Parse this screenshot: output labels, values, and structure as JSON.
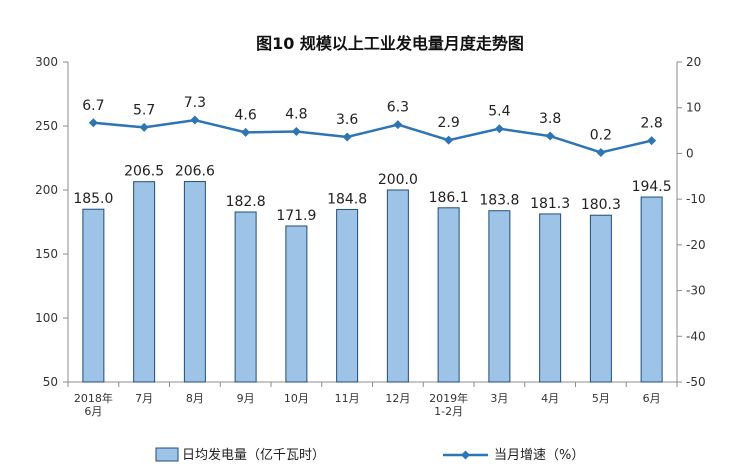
{
  "chart_data": {
    "type": "bar+line",
    "title": "图10  规模以上工业发电量月度走势图",
    "categories": [
      [
        "2018年",
        "6月"
      ],
      [
        "7月"
      ],
      [
        "8月"
      ],
      [
        "9月"
      ],
      [
        "10月"
      ],
      [
        "11月"
      ],
      [
        "12月"
      ],
      [
        "2019年",
        "1-2月"
      ],
      [
        "3月"
      ],
      [
        "4月"
      ],
      [
        "5月"
      ],
      [
        "6月"
      ]
    ],
    "series": [
      {
        "name": "日均发电量（亿千瓦时）",
        "type": "bar",
        "axis": "left",
        "values": [
          185.0,
          206.5,
          206.6,
          182.8,
          171.9,
          184.8,
          200.0,
          186.1,
          183.8,
          181.3,
          180.3,
          194.5
        ],
        "labels": [
          "185.0",
          "206.5",
          "206.6",
          "182.8",
          "171.9",
          "184.8",
          "200.0",
          "186.1",
          "183.8",
          "181.3",
          "180.3",
          "194.5"
        ],
        "color": "#9dc3e6",
        "border": "#1f4e79"
      },
      {
        "name": "当月增速（%）",
        "type": "line",
        "axis": "right",
        "values": [
          6.7,
          5.7,
          7.3,
          4.6,
          4.8,
          3.6,
          6.3,
          2.9,
          5.4,
          3.8,
          0.2,
          2.8
        ],
        "labels": [
          "6.7",
          "5.7",
          "7.3",
          "4.6",
          "4.8",
          "3.6",
          "6.3",
          "2.9",
          "5.4",
          "3.8",
          "0.2",
          "2.8"
        ],
        "color": "#2e75b6"
      }
    ],
    "y_left": {
      "min": 50,
      "max": 300,
      "ticks": [
        "300",
        "250",
        "200",
        "150",
        "100",
        "50"
      ],
      "tick_values": [
        300,
        250,
        200,
        150,
        100,
        50
      ]
    },
    "y_right": {
      "min": -50,
      "max": 20,
      "ticks": [
        "20",
        "10",
        "0",
        "-10",
        "-20",
        "-30",
        "-40",
        "-50"
      ],
      "tick_values": [
        20,
        10,
        0,
        -10,
        -20,
        -30,
        -40,
        -50
      ]
    },
    "grid": false,
    "legend_position": "bottom"
  }
}
